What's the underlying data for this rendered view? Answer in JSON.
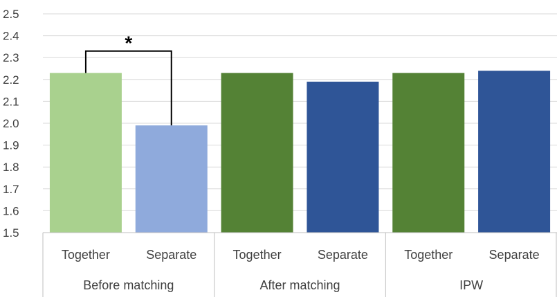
{
  "chart_data": {
    "type": "bar",
    "title": "",
    "xlabel": "",
    "ylabel": "",
    "ylim": [
      1.5,
      2.5
    ],
    "yticks": [
      "1.5",
      "1.6",
      "1.7",
      "1.8",
      "1.9",
      "2.0",
      "2.1",
      "2.2",
      "2.3",
      "2.4",
      "2.5"
    ],
    "grid": true,
    "legend": "none",
    "groups": [
      {
        "label": "Before matching",
        "categories": [
          "Together",
          "Separate"
        ]
      },
      {
        "label": "After matching",
        "categories": [
          "Together",
          "Separate"
        ]
      },
      {
        "label": "IPW",
        "categories": [
          "Together",
          "Separate"
        ]
      }
    ],
    "bars": [
      {
        "group": "Before matching",
        "category": "Together",
        "value": 2.23,
        "color": "#a9d18e"
      },
      {
        "group": "Before matching",
        "category": "Separate",
        "value": 1.99,
        "color": "#8faadc"
      },
      {
        "group": "After matching",
        "category": "Together",
        "value": 2.23,
        "color": "#548235"
      },
      {
        "group": "After matching",
        "category": "Separate",
        "value": 2.19,
        "color": "#2f5597"
      },
      {
        "group": "IPW",
        "category": "Together",
        "value": 2.23,
        "color": "#548235"
      },
      {
        "group": "IPW",
        "category": "Separate",
        "value": 2.24,
        "color": "#2f5597"
      }
    ],
    "annotations": [
      {
        "type": "significance-bracket",
        "between": [
          0,
          1
        ],
        "label": "*",
        "top_value": 2.33
      }
    ],
    "colors": {
      "gridline": "#d9d9d9",
      "axis": "#bfbfbf",
      "text": "#404040",
      "bracket": "#000000"
    }
  }
}
